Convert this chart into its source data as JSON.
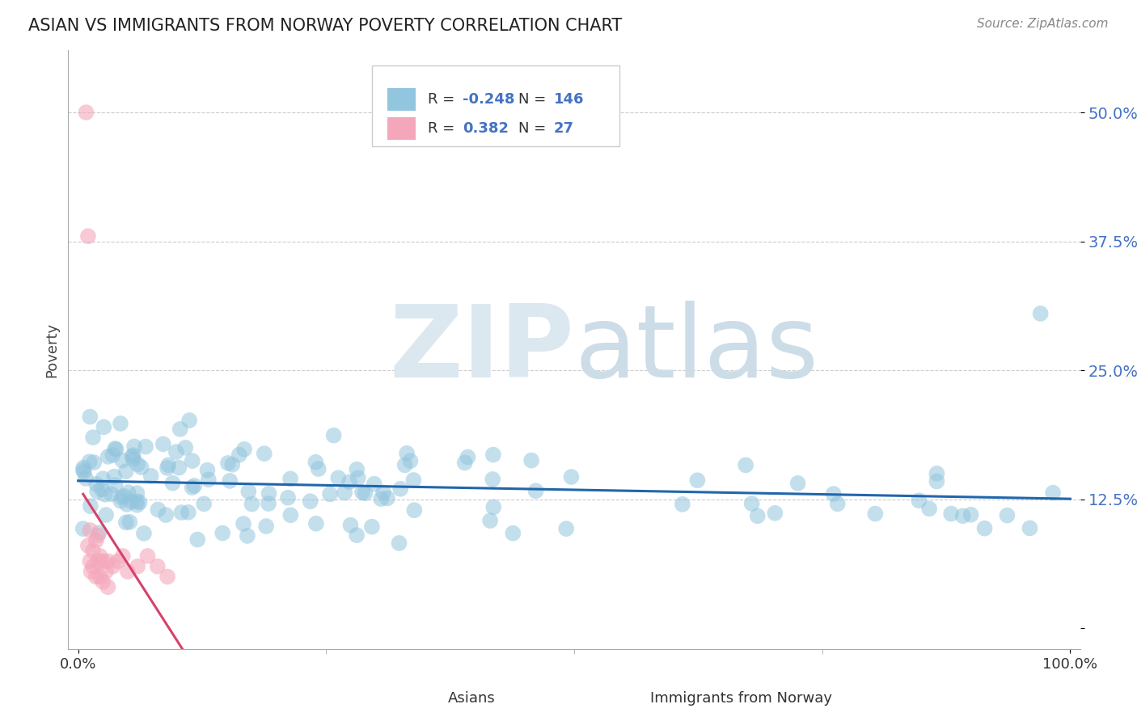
{
  "title": "ASIAN VS IMMIGRANTS FROM NORWAY POVERTY CORRELATION CHART",
  "source": "Source: ZipAtlas.com",
  "ylabel": "Poverty",
  "y_ticks": [
    0.0,
    0.125,
    0.25,
    0.375,
    0.5
  ],
  "y_tick_labels": [
    "",
    "12.5%",
    "25.0%",
    "37.5%",
    "50.0%"
  ],
  "blue_color": "#92c5de",
  "pink_color": "#f4a7bb",
  "blue_line_color": "#2166ac",
  "pink_line_color": "#d6426a",
  "background_color": "#ffffff",
  "grid_color": "#cccccc",
  "tick_color": "#4472c4",
  "spine_color": "#aaaaaa",
  "watermark_zip_color": "#e0e8f0",
  "watermark_atlas_color": "#d0dce8",
  "legend_edge_color": "#cccccc",
  "title_color": "#222222",
  "source_color": "#888888",
  "legend_r_label_color": "#333333",
  "legend_val_color": "#4472c4"
}
